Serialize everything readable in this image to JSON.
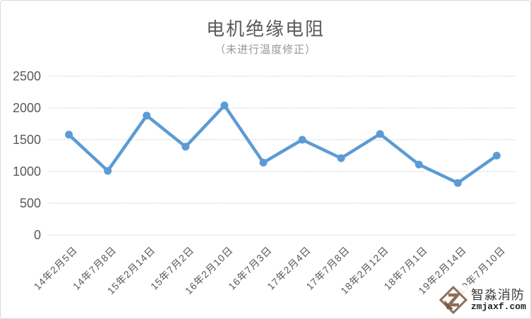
{
  "chart_data": {
    "type": "line",
    "title": "电机绝缘电阻",
    "subtitle": "（未进行温度修正）",
    "categories": [
      "14年2月5日",
      "14年7月8日",
      "15年2月14日",
      "15年7月2日",
      "16年2月10日",
      "16年7月3日",
      "17年2月4日",
      "17年7月8日",
      "18年2月12日",
      "18年7月1日",
      "19年2月14日",
      "19年7月10日"
    ],
    "values": [
      1580,
      1010,
      1880,
      1390,
      2040,
      1140,
      1500,
      1210,
      1590,
      1110,
      820,
      1250
    ],
    "xlabel": "",
    "ylabel": "",
    "ylim": [
      0,
      2500
    ],
    "ytick_step": 500,
    "grid": true,
    "legend_position": "none",
    "line_color": "#5B9BD5",
    "marker": "circle"
  },
  "colors": {
    "title": "#595959",
    "subtitle": "#969696",
    "axis_label": "#595959",
    "gridline": "#d9d9d9",
    "background": "#ffffff",
    "border": "#d8d8d8",
    "watermark_logo": "#8f6f58"
  },
  "watermark": {
    "brand": "智淼消防",
    "url": "zmjaxf.com",
    "logo": "diamond-z-logo"
  }
}
